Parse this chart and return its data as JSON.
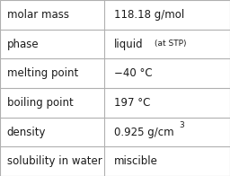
{
  "rows": [
    {
      "label": "molar mass",
      "value": "118.18 g/mol",
      "value_extra": null,
      "superscript": false
    },
    {
      "label": "phase",
      "value": "liquid",
      "value_extra": "(at STP)",
      "superscript": false
    },
    {
      "label": "melting point",
      "value": "−40 °C",
      "value_extra": null,
      "superscript": false
    },
    {
      "label": "boiling point",
      "value": "197 °C",
      "value_extra": null,
      "superscript": false
    },
    {
      "label": "density",
      "value": "0.925 g/cm",
      "value_extra": "3",
      "superscript": true
    },
    {
      "label": "solubility in water",
      "value": "miscible",
      "value_extra": null,
      "superscript": false
    }
  ],
  "bg_color": "#ffffff",
  "border_color": "#b0b0b0",
  "text_color": "#1a1a1a",
  "label_fontsize": 8.5,
  "value_fontsize": 8.5,
  "small_fontsize": 6.5,
  "col_split": 0.455,
  "fig_width": 2.56,
  "fig_height": 1.96,
  "dpi": 100
}
